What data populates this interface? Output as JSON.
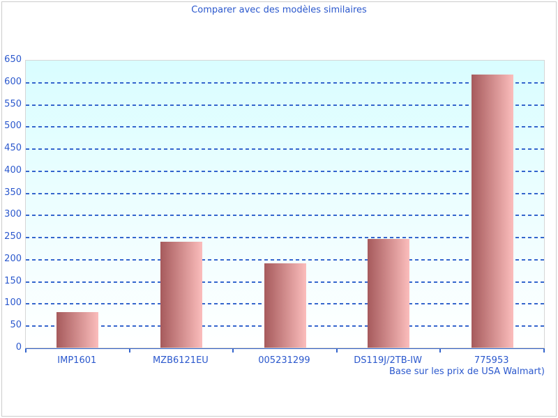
{
  "title": "Comparer avec des modèles similaires",
  "footnote": "Base sur les prix de USA Walmart)",
  "chart_data": {
    "type": "bar",
    "title": "Comparer avec des modèles similaires",
    "categories": [
      "IMP1601",
      "MZB6121EU",
      "005231299",
      "DS119J/2TB-IW",
      "775953"
    ],
    "values": [
      80,
      240,
      190,
      245,
      617
    ],
    "xlabel": "",
    "ylabel": "",
    "ylim": [
      0,
      650
    ],
    "ytick_step": 50,
    "ytick_labels": [
      "0",
      "50",
      "100",
      "150",
      "200",
      "250",
      "300",
      "350",
      "400",
      "450",
      "500",
      "550",
      "600",
      "650"
    ],
    "grid": "horizontal-dashed",
    "legend": "none",
    "footnote": "Base sur les prix de USA Walmart)"
  },
  "colors": {
    "text_blue": "#2b58cd",
    "gridline_blue": "#3465cd",
    "axis_blue": "#3465cd",
    "bar_gradient_left": "#a65a5c",
    "bar_gradient_right": "#fbbdbc",
    "plot_bg_top": "#d9fdff",
    "plot_bg_bottom": "#ffffff",
    "border_gray": "#cccccc"
  }
}
